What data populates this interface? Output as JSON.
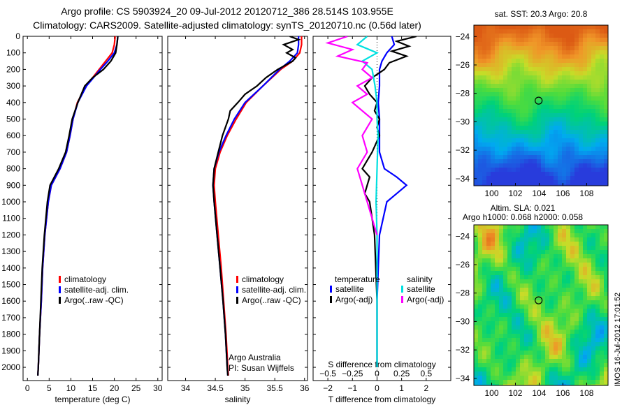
{
  "header": {
    "line1": "Argo profile: CS 5903924_20 09-Jul-2012 20120712_386 28.514S 103.955E",
    "line2": "Climatology: CARS2009. Satellite-adjusted climatology: synTS_20120710.nc (0.56d later)"
  },
  "watermark": "IMOS 16-Jul-2012 17:01:52",
  "colors": {
    "climatology": "#ff0000",
    "satellite": "#0000ff",
    "argo": "#000000",
    "sal_satellite": "#00e0e0",
    "sal_argo": "#ff00ff"
  },
  "chart_data": [
    {
      "type": "line",
      "xlabel": "temperature (deg C)",
      "ylabel": "",
      "xlim": [
        -1,
        31
      ],
      "ylim": [
        2080,
        0
      ],
      "xticks": [
        0,
        5,
        10,
        15,
        20,
        25,
        30
      ],
      "yticks": [
        0,
        100,
        200,
        300,
        400,
        500,
        600,
        700,
        800,
        900,
        1000,
        1100,
        1200,
        1300,
        1400,
        1500,
        1600,
        1700,
        1800,
        1900,
        2000
      ],
      "legend": [
        "climatology",
        "satellite-adj. clim.",
        "Argo(..raw -QC)"
      ],
      "legend_position": "lower-center",
      "series": [
        {
          "name": "climatology",
          "color": "#ff0000",
          "depth": [
            0,
            50,
            100,
            150,
            200,
            300,
            400,
            500,
            600,
            700,
            800,
            900,
            1000,
            1200,
            1400,
            1600,
            1800,
            2000,
            2050
          ],
          "values": [
            20.2,
            20.0,
            19.5,
            18.0,
            16.5,
            13.5,
            11.5,
            10.5,
            9.8,
            9.0,
            7.5,
            5.5,
            4.8,
            4.0,
            3.5,
            3.2,
            2.8,
            2.5,
            2.4
          ]
        },
        {
          "name": "satellite-adj. clim.",
          "color": "#0000ff",
          "depth": [
            0,
            50,
            100,
            150,
            200,
            300,
            400,
            500,
            600,
            700,
            800,
            900,
            1000,
            1200,
            1400,
            1600,
            1800,
            2000,
            2050
          ],
          "values": [
            20.8,
            20.6,
            20.0,
            18.5,
            16.8,
            13.6,
            11.6,
            10.5,
            9.8,
            9.0,
            7.5,
            5.5,
            4.8,
            4.0,
            3.5,
            3.2,
            2.8,
            2.5,
            2.4
          ]
        },
        {
          "name": "Argo(..raw -QC)",
          "color": "#000000",
          "depth": [
            0,
            50,
            100,
            150,
            200,
            250,
            300,
            400,
            500,
            600,
            700,
            800,
            900,
            1000,
            1200,
            1400,
            1600,
            1800,
            2000,
            2050
          ],
          "values": [
            20.8,
            20.6,
            20.3,
            19.2,
            17.5,
            15.0,
            13.2,
            11.6,
            10.3,
            9.6,
            8.8,
            7.2,
            5.2,
            4.6,
            3.9,
            3.4,
            3.1,
            2.8,
            2.5,
            2.4
          ]
        }
      ]
    },
    {
      "type": "line",
      "xlabel": "salinity",
      "ylabel": "",
      "xlim": [
        33.7,
        36.05
      ],
      "ylim": [
        2080,
        0
      ],
      "xticks": [
        34,
        34.5,
        35,
        35.5,
        36
      ],
      "legend": [
        "climatology",
        "satellite-adj. clim.",
        "Argo(..raw -QC)"
      ],
      "legend_position": "lower-right",
      "annotations": [
        "Argo Australia",
        "PI: Susan Wijffels"
      ],
      "series": [
        {
          "name": "climatology",
          "color": "#ff0000",
          "depth": [
            0,
            50,
            100,
            150,
            200,
            300,
            400,
            500,
            600,
            700,
            800,
            900,
            1000,
            1200,
            1400,
            1600,
            1800,
            2000,
            2050
          ],
          "values": [
            35.95,
            35.95,
            35.92,
            35.8,
            35.6,
            35.3,
            35.02,
            34.85,
            34.7,
            34.58,
            34.5,
            34.48,
            34.5,
            34.55,
            34.6,
            34.64,
            34.68,
            34.71,
            34.72
          ]
        },
        {
          "name": "satellite-adj. clim.",
          "color": "#0000ff",
          "depth": [
            0,
            50,
            100,
            150,
            200,
            300,
            400,
            500,
            600,
            700,
            800,
            900,
            1000,
            1200,
            1400,
            1600,
            1800,
            2000,
            2050
          ],
          "values": [
            35.9,
            35.9,
            35.88,
            35.75,
            35.58,
            35.3,
            35.0,
            34.82,
            34.68,
            34.56,
            34.48,
            34.46,
            34.48,
            34.53,
            34.58,
            34.63,
            34.67,
            34.7,
            34.71
          ]
        },
        {
          "name": "Argo(..raw -QC)",
          "color": "#000000",
          "depth": [
            0,
            20,
            50,
            80,
            100,
            130,
            150,
            200,
            250,
            300,
            350,
            400,
            450,
            500,
            600,
            700,
            800,
            900,
            1000,
            1200,
            1400,
            1600,
            1800,
            2000,
            2050
          ],
          "values": [
            35.75,
            35.9,
            35.65,
            35.8,
            35.7,
            35.85,
            35.8,
            35.55,
            35.35,
            35.2,
            35.0,
            34.88,
            34.75,
            34.72,
            34.62,
            34.55,
            34.48,
            34.46,
            34.48,
            34.53,
            34.58,
            34.63,
            34.67,
            34.7,
            34.71
          ]
        }
      ]
    },
    {
      "type": "line",
      "xlabel": "T difference from climatology",
      "xlabel2": "S difference from climatology",
      "xlim": [
        -2.6,
        3.0
      ],
      "xticks": [
        -2,
        -1,
        0,
        1,
        2
      ],
      "xticks_top_labels": [
        "-0.5",
        "-0.25",
        "0",
        "0.25",
        "0.5"
      ],
      "ylim": [
        2080,
        0
      ],
      "legend_groups": [
        {
          "title": "temperature",
          "entries": [
            "satellite",
            "Argo(-adj)"
          ]
        },
        {
          "title": "salinity",
          "entries": [
            "satellite",
            "Argo(-adj)"
          ]
        }
      ],
      "legend_position": "lower",
      "series": [
        {
          "name": "satellite",
          "group": "temperature",
          "color": "#0000ff",
          "depth": [
            0,
            50,
            100,
            150,
            200,
            300,
            400,
            500,
            600,
            700,
            800,
            850,
            900,
            950,
            1000,
            1200,
            1400,
            1600,
            1800,
            2000
          ],
          "values": [
            0.6,
            0.7,
            0.4,
            0.2,
            0.1,
            0.1,
            0.05,
            0.1,
            0.1,
            0.1,
            0.3,
            0.8,
            1.2,
            0.8,
            0.4,
            0.1,
            0.05,
            0.0,
            0.0,
            0.0
          ]
        },
        {
          "name": "Argo(-adj)",
          "group": "temperature",
          "color": "#000000",
          "depth": [
            0,
            30,
            60,
            90,
            120,
            160,
            200,
            250,
            300,
            350,
            400,
            450,
            500,
            550,
            600,
            700,
            800,
            850,
            900,
            950,
            1000,
            1200,
            1400,
            1600,
            1800,
            2000
          ],
          "values": [
            1.6,
            0.8,
            1.3,
            0.6,
            1.2,
            0.5,
            0.3,
            -0.2,
            -0.5,
            -0.3,
            0.0,
            -0.1,
            0.1,
            0.0,
            0.1,
            -0.2,
            -0.6,
            -0.3,
            -0.4,
            -0.5,
            -0.3,
            -0.1,
            -0.05,
            0.0,
            0.0,
            0.0
          ]
        },
        {
          "name": "satellite",
          "group": "salinity",
          "color": "#00e0e0",
          "depth": [
            0,
            50,
            100,
            150,
            200,
            300,
            400,
            500,
            600,
            800,
            1000,
            1200,
            1400,
            1600,
            1800,
            2000
          ],
          "values": [
            -0.1,
            -0.2,
            0.0,
            -0.15,
            -0.05,
            -0.02,
            0.0,
            0.0,
            0.01,
            0.0,
            -0.01,
            0.0,
            0.0,
            0.0,
            0.0,
            0.0
          ]
        },
        {
          "name": "Argo(-adj)",
          "group": "salinity",
          "color": "#ff00ff",
          "depth": [
            0,
            40,
            80,
            120,
            160,
            200,
            250,
            300,
            350,
            400,
            500,
            600,
            700,
            800,
            900,
            1000,
            1100,
            1200
          ],
          "values": [
            -0.3,
            -0.5,
            -0.25,
            -0.4,
            -0.1,
            -0.15,
            -0.05,
            -0.2,
            -0.1,
            -0.25,
            -0.05,
            -0.15,
            -0.1,
            -0.2,
            -0.15,
            -0.1,
            -0.05,
            0.0
          ]
        }
      ]
    },
    {
      "type": "heatmap",
      "title": "sat. SST: 20.3 Argo: 20.8",
      "x_ticks": [
        100,
        102,
        104,
        106,
        108
      ],
      "y_ticks": [
        -24,
        -26,
        -28,
        -30,
        -32,
        -34
      ],
      "xlim": [
        98.5,
        109.8
      ],
      "ylim": [
        -34.5,
        -23.2
      ],
      "marker": {
        "lon": 103.955,
        "lat": -28.514
      },
      "field": "sst"
    },
    {
      "type": "heatmap",
      "title": "Altim. SLA: 0.021",
      "subtitle": "Argo h1000: 0.068 h2000: 0.058",
      "x_ticks": [
        100,
        102,
        104,
        106,
        108
      ],
      "y_ticks": [
        -24,
        -26,
        -28,
        -30,
        -32,
        -34
      ],
      "xlim": [
        98.5,
        109.8
      ],
      "ylim": [
        -34.5,
        -23.2
      ],
      "marker": {
        "lon": 103.955,
        "lat": -28.514
      },
      "field": "sla"
    }
  ]
}
